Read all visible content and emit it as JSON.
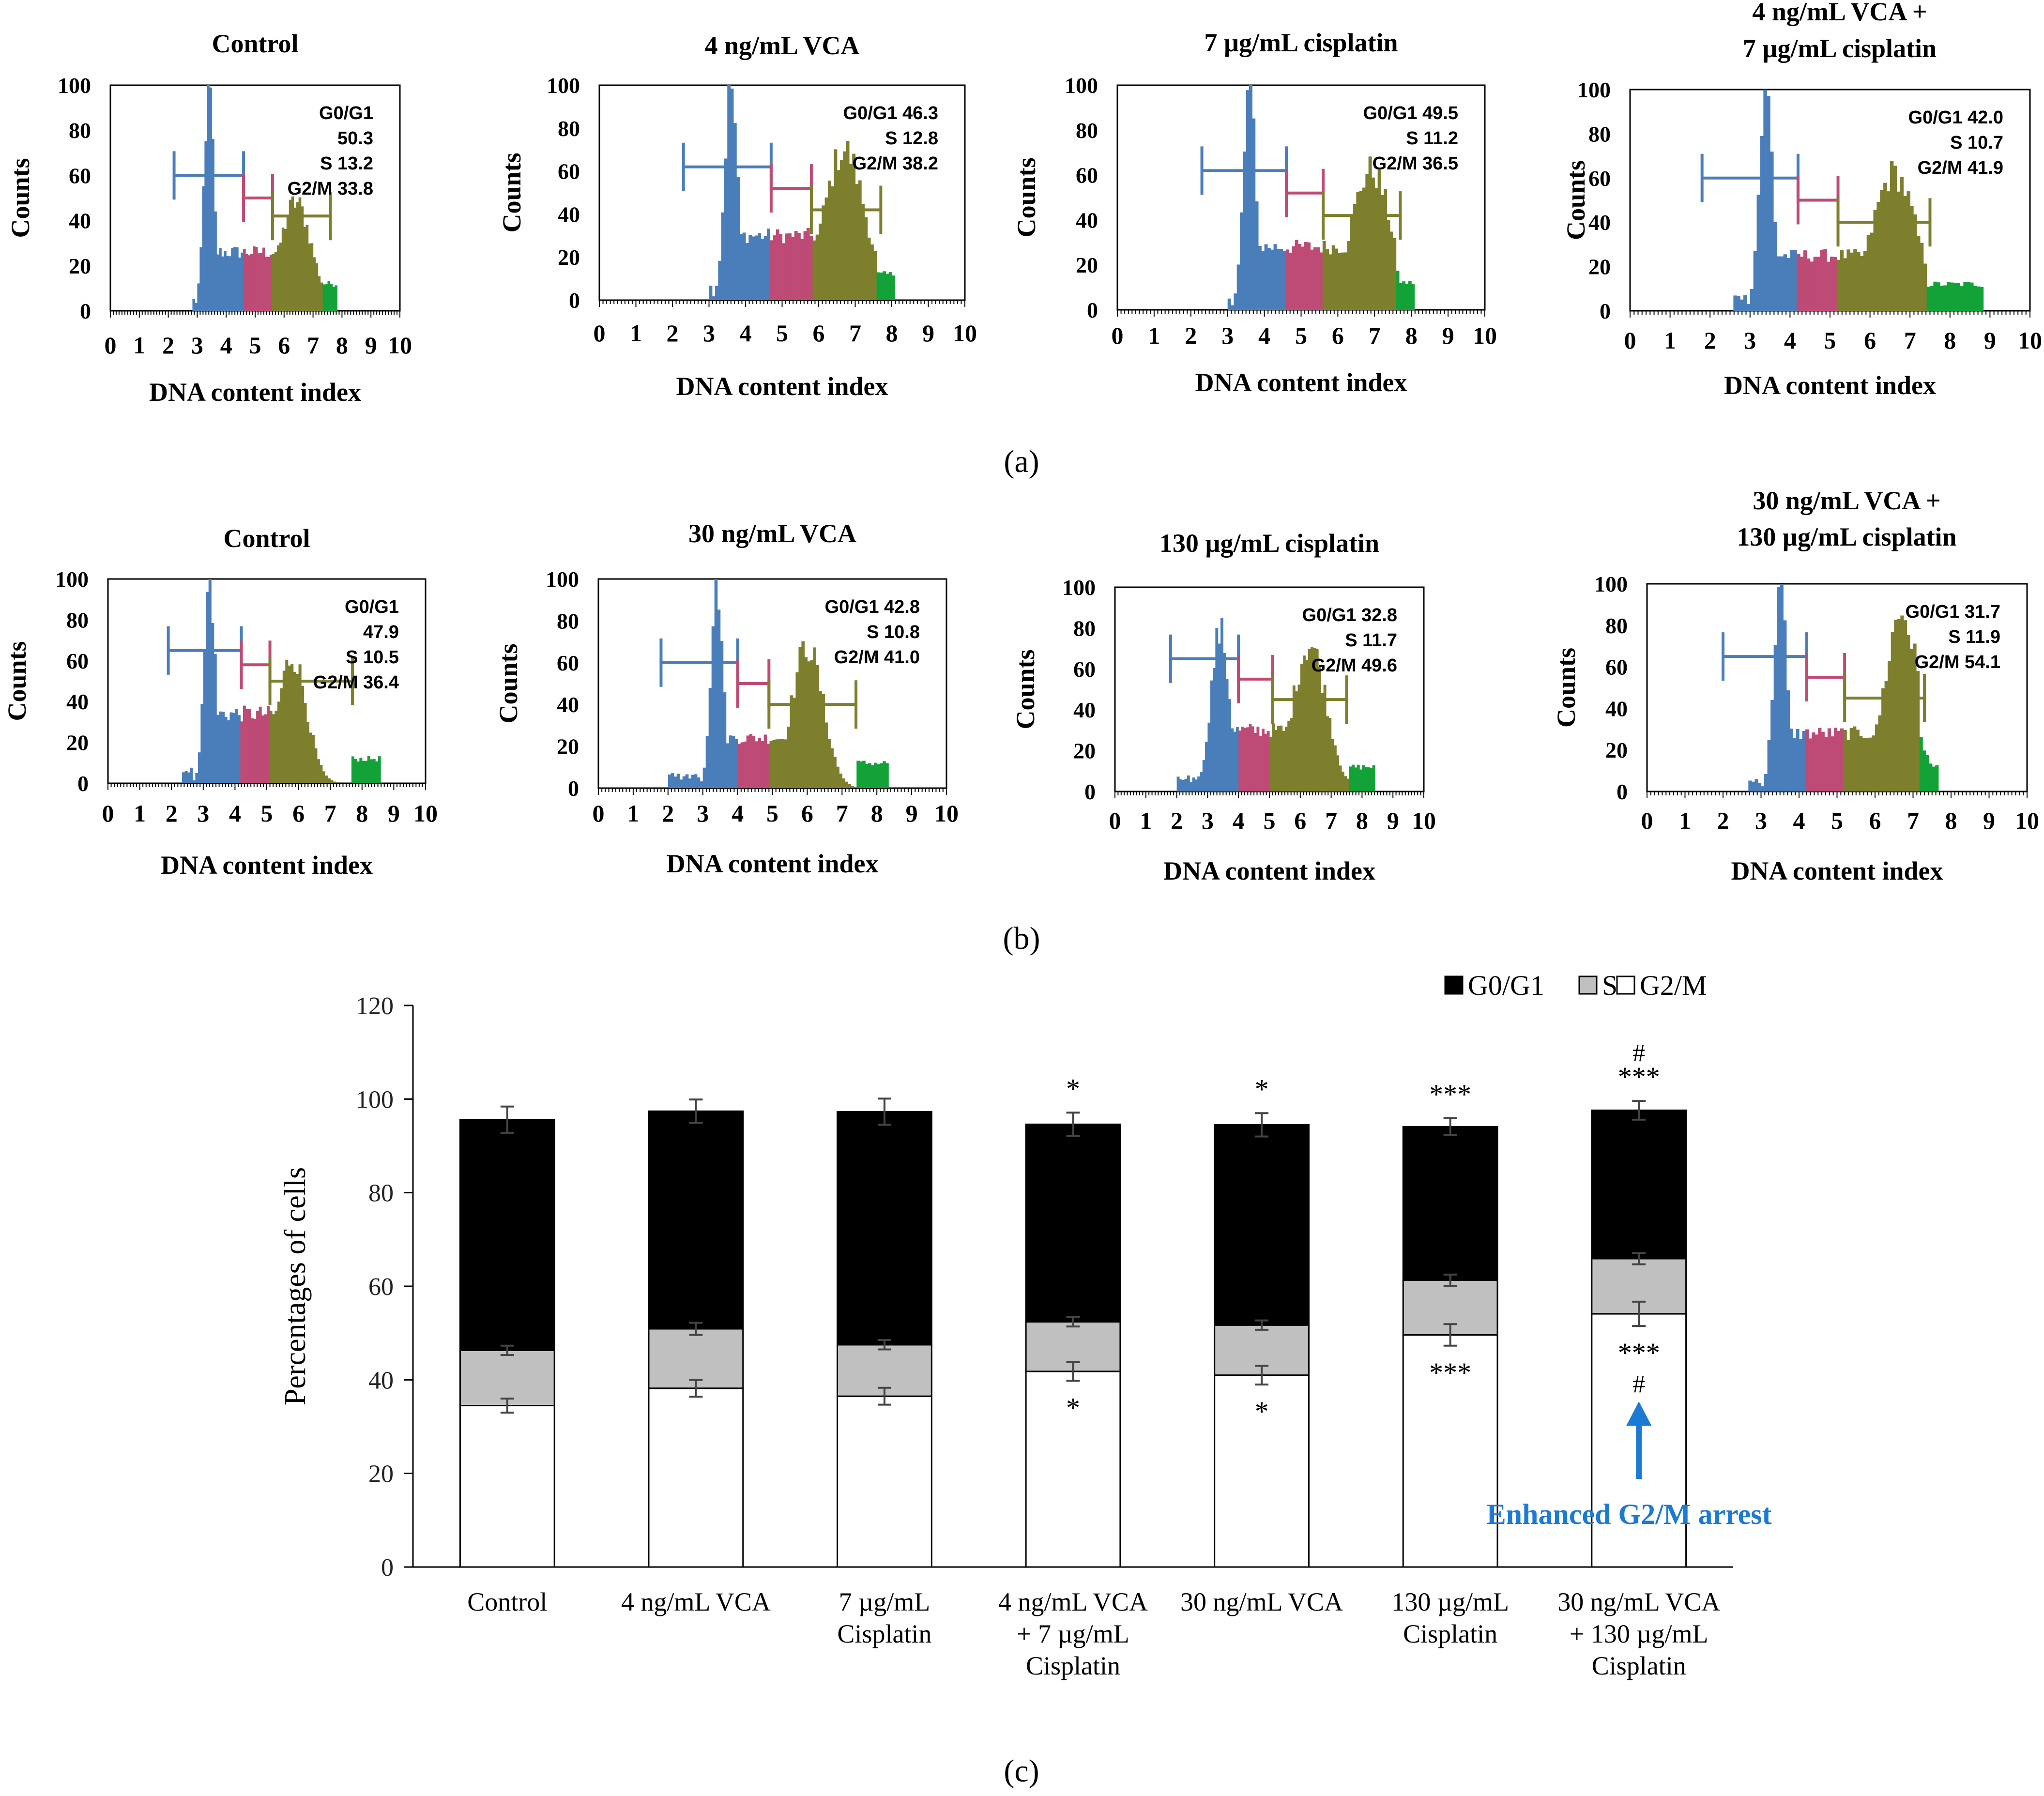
{
  "panel_labels": [
    "(a)",
    "(b)",
    "(c)"
  ],
  "colors": {
    "g0g1_hist": "#4a7ebb",
    "s_hist": "#be4b75",
    "g2m_hist": "#7d7f2c",
    "tail_hist": "#13a237",
    "bar_g0g1": "#000000",
    "bar_s": "#c0c0c0",
    "bar_g2m": "#ffffff",
    "annotation_blue": "#1b7ad3"
  },
  "chart_data": [
    {
      "type": "histogram",
      "panel": "a",
      "title": "Control",
      "xlabel": "DNA content index",
      "ylabel": "Counts",
      "xlim": [
        0,
        10
      ],
      "ylim": [
        0,
        100
      ],
      "xticks": [
        "0",
        "1",
        "2",
        "3",
        "4",
        "5",
        "6",
        "7",
        "8",
        "9",
        "10"
      ],
      "yticks": [
        "0",
        "20",
        "40",
        "60",
        "80",
        "100"
      ],
      "stats_text": [
        "G0/G1",
        "50.3",
        "S 13.2",
        "G2/M 33.8"
      ],
      "gates": {
        "g0g1": [
          2.2,
          4.6,
          60
        ],
        "s": [
          4.6,
          5.6,
          50
        ],
        "g2m": [
          5.6,
          7.6,
          42
        ]
      },
      "regions": {
        "g0g1": [
          2.8,
          4.6
        ],
        "s": [
          4.6,
          5.6
        ],
        "g2m": [
          5.6,
          7.3
        ],
        "tail": [
          7.3,
          7.8
        ]
      },
      "peaks": [
        {
          "center": 3.4,
          "height": 100,
          "width": 0.17
        },
        {
          "center": 6.4,
          "height": 48,
          "width": 0.55
        }
      ],
      "plateau": 26
    },
    {
      "type": "histogram",
      "panel": "a",
      "title": "4 ng/mL VCA",
      "xlabel": "DNA content index",
      "ylabel": "Counts",
      "xlim": [
        0,
        10
      ],
      "ylim": [
        0,
        100
      ],
      "xticks": [
        "0",
        "1",
        "2",
        "3",
        "4",
        "5",
        "6",
        "7",
        "8",
        "9",
        "10"
      ],
      "yticks": [
        "0",
        "20",
        "40",
        "60",
        "80",
        "100"
      ],
      "stats_text": [
        "G0/G1 46.3",
        "S 12.8",
        "G2/M 38.2"
      ],
      "gates": {
        "g0g1": [
          2.3,
          4.7,
          62
        ],
        "s": [
          4.7,
          5.8,
          52
        ],
        "g2m": [
          5.8,
          7.7,
          42
        ]
      },
      "regions": {
        "g0g1": [
          3.0,
          4.7
        ],
        "s": [
          4.7,
          5.8
        ],
        "g2m": [
          5.8,
          7.6
        ],
        "tail": [
          7.6,
          8.1
        ]
      },
      "peaks": [
        {
          "center": 3.6,
          "height": 100,
          "width": 0.17
        },
        {
          "center": 6.7,
          "height": 70,
          "width": 0.55
        }
      ],
      "plateau": 30
    },
    {
      "type": "histogram",
      "panel": "a",
      "title": "7 µg/mL cisplatin",
      "xlabel": "DNA content index",
      "ylabel": "Counts",
      "xlim": [
        0,
        10
      ],
      "ylim": [
        0,
        100
      ],
      "xticks": [
        "0",
        "1",
        "2",
        "3",
        "4",
        "5",
        "6",
        "7",
        "8",
        "9",
        "10"
      ],
      "yticks": [
        "0",
        "20",
        "40",
        "60",
        "80",
        "100"
      ],
      "stats_text": [
        "G0/G1 49.5",
        "S 11.2",
        "G2/M 36.5"
      ],
      "gates": {
        "g0g1": [
          2.3,
          4.6,
          62
        ],
        "s": [
          4.6,
          5.6,
          52
        ],
        "g2m": [
          5.6,
          7.7,
          42
        ]
      },
      "regions": {
        "g0g1": [
          3.0,
          4.6
        ],
        "s": [
          4.6,
          5.6
        ],
        "g2m": [
          5.6,
          7.6
        ],
        "tail": [
          7.6,
          8.1
        ]
      },
      "peaks": [
        {
          "center": 3.6,
          "height": 100,
          "width": 0.17
        },
        {
          "center": 6.9,
          "height": 62,
          "width": 0.55
        }
      ],
      "plateau": 28
    },
    {
      "type": "histogram",
      "panel": "a",
      "title": "4 ng/mL VCA + 7 µg/mL cisplatin",
      "title_lines": [
        "4 ng/mL VCA +",
        "7 µg/mL cisplatin"
      ],
      "xlabel": "DNA content index",
      "ylabel": "Counts",
      "xlim": [
        0,
        10
      ],
      "ylim": [
        0,
        100
      ],
      "xticks": [
        "0",
        "1",
        "2",
        "3",
        "4",
        "5",
        "6",
        "7",
        "8",
        "9",
        "10"
      ],
      "yticks": [
        "0",
        "20",
        "40",
        "60",
        "80",
        "100"
      ],
      "stats_text": [
        "G0/G1 42.0",
        "S 10.7",
        "G2/M 41.9"
      ],
      "gates": {
        "g0g1": [
          1.8,
          4.2,
          60
        ],
        "s": [
          4.2,
          5.2,
          50
        ],
        "g2m": [
          5.2,
          7.5,
          40
        ]
      },
      "regions": {
        "g0g1": [
          2.6,
          4.2
        ],
        "s": [
          4.2,
          5.2
        ],
        "g2m": [
          5.2,
          7.4
        ],
        "tail": [
          7.4,
          8.8
        ]
      },
      "peaks": [
        {
          "center": 3.4,
          "height": 100,
          "width": 0.17
        },
        {
          "center": 6.6,
          "height": 62,
          "width": 0.55
        }
      ],
      "plateau": 25
    },
    {
      "type": "histogram",
      "panel": "b",
      "title": "Control",
      "xlabel": "DNA content index",
      "ylabel": "Counts",
      "xlim": [
        0,
        10
      ],
      "ylim": [
        0,
        100
      ],
      "xticks": [
        "0",
        "1",
        "2",
        "3",
        "4",
        "5",
        "6",
        "7",
        "8",
        "9",
        "10"
      ],
      "yticks": [
        "0",
        "20",
        "40",
        "60",
        "80",
        "100"
      ],
      "stats_text": [
        "G0/G1",
        "47.9",
        "S 10.5",
        "G2/M 36.4"
      ],
      "gates": {
        "g0g1": [
          1.9,
          4.2,
          65
        ],
        "s": [
          4.2,
          5.1,
          58
        ],
        "g2m": [
          5.1,
          7.7,
          50
        ]
      },
      "regions": {
        "g0g1": [
          2.3,
          4.2
        ],
        "s": [
          4.2,
          5.1
        ],
        "g2m": [
          5.1,
          7.7
        ],
        "tail": [
          7.7,
          8.6
        ]
      },
      "peaks": [
        {
          "center": 3.2,
          "height": 100,
          "width": 0.17
        },
        {
          "center": 5.8,
          "height": 62,
          "width": 0.45
        }
      ],
      "plateau": 34
    },
    {
      "type": "histogram",
      "panel": "b",
      "title": "30 ng/mL VCA",
      "xlabel": "DNA content index",
      "ylabel": "Counts",
      "xlim": [
        0,
        10
      ],
      "ylim": [
        0,
        100
      ],
      "xticks": [
        "0",
        "1",
        "2",
        "3",
        "4",
        "5",
        "6",
        "7",
        "8",
        "9",
        "10"
      ],
      "yticks": [
        "0",
        "20",
        "40",
        "60",
        "80",
        "100"
      ],
      "stats_text": [
        "G0/G1 42.8",
        "S 10.8",
        "G2/M 41.0"
      ],
      "gates": {
        "g0g1": [
          1.8,
          4.0,
          60
        ],
        "s": [
          4.0,
          4.9,
          50
        ],
        "g2m": [
          4.9,
          7.4,
          40
        ]
      },
      "regions": {
        "g0g1": [
          2.0,
          4.0
        ],
        "s": [
          4.0,
          4.9
        ],
        "g2m": [
          4.9,
          7.4
        ],
        "tail": [
          7.4,
          8.3
        ]
      },
      "peaks": [
        {
          "center": 3.4,
          "height": 100,
          "width": 0.17
        },
        {
          "center": 6.0,
          "height": 68,
          "width": 0.45
        }
      ],
      "plateau": 24
    },
    {
      "type": "histogram",
      "panel": "b",
      "title": "130 µg/mL cisplatin",
      "xlabel": "DNA content index",
      "ylabel": "Counts",
      "xlim": [
        0,
        10
      ],
      "ylim": [
        0,
        100
      ],
      "xticks": [
        "0",
        "1",
        "2",
        "3",
        "4",
        "5",
        "6",
        "7",
        "8",
        "9",
        "10"
      ],
      "yticks": [
        "0",
        "20",
        "40",
        "60",
        "80",
        "100"
      ],
      "stats_text": [
        "G0/G1 32.8",
        "S 11.7",
        "G2/M 49.6"
      ],
      "gates": {
        "g0g1": [
          1.8,
          4.0,
          65
        ],
        "s": [
          4.0,
          5.1,
          55
        ],
        "g2m": [
          5.1,
          7.5,
          45
        ]
      },
      "regions": {
        "g0g1": [
          2.0,
          4.0
        ],
        "s": [
          4.0,
          5.0
        ],
        "g2m": [
          5.0,
          7.6
        ],
        "tail": [
          7.6,
          8.4
        ]
      },
      "peaks": [
        {
          "center": 3.4,
          "height": 78,
          "width": 0.3
        },
        {
          "center": 6.3,
          "height": 72,
          "width": 0.55
        }
      ],
      "plateau": 30
    },
    {
      "type": "histogram",
      "panel": "b",
      "title": "30 ng/mL VCA + 130 µg/mL cisplatin",
      "title_lines": [
        "30 ng/mL VCA +",
        "130 µg/mL cisplatin"
      ],
      "xlabel": "DNA content index",
      "ylabel": "Counts",
      "xlim": [
        0,
        10
      ],
      "ylim": [
        0,
        100
      ],
      "xticks": [
        "0",
        "1",
        "2",
        "3",
        "4",
        "5",
        "6",
        "7",
        "8",
        "9",
        "10"
      ],
      "yticks": [
        "0",
        "20",
        "40",
        "60",
        "80",
        "100"
      ],
      "stats_text": [
        "G0/G1 31.7",
        "S 11.9",
        "G2/M 54.1"
      ],
      "gates": {
        "g0g1": [
          2.0,
          4.2,
          65
        ],
        "s": [
          4.2,
          5.2,
          55
        ],
        "g2m": [
          5.2,
          7.3,
          45
        ]
      },
      "regions": {
        "g0g1": [
          2.7,
          4.2
        ],
        "s": [
          4.2,
          5.2
        ],
        "g2m": [
          5.2,
          7.2
        ],
        "tail": [
          7.2,
          7.7
        ]
      },
      "peaks": [
        {
          "center": 3.5,
          "height": 100,
          "width": 0.17
        },
        {
          "center": 6.7,
          "height": 86,
          "width": 0.45
        }
      ],
      "plateau": 28
    },
    {
      "type": "bar",
      "stacked": true,
      "panel": "c",
      "ylabel": "Percentages of cells",
      "ylim": [
        0,
        120
      ],
      "yticks": [
        "0",
        "20",
        "40",
        "60",
        "80",
        "100",
        "120"
      ],
      "legend": [
        "G0/G1",
        "S",
        "G2/M"
      ],
      "legend_position": "top-right",
      "categories": [
        [
          "Control"
        ],
        [
          "4 ng/mL  VCA"
        ],
        [
          "7 µg/mL",
          "Cisplatin"
        ],
        [
          "4 ng/mL  VCA",
          "+ 7 µg/mL",
          "Cisplatin"
        ],
        [
          "30 ng/mL  VCA"
        ],
        [
          "130 µg/mL",
          "Cisplatin"
        ],
        [
          "30 ng/mL  VCA",
          "+ 130 µg/mL",
          "Cisplatin"
        ]
      ],
      "series": [
        {
          "name": "G2/M",
          "values": [
            34.5,
            38.2,
            36.5,
            41.8,
            41.0,
            49.6,
            54.1
          ],
          "errors": [
            1.5,
            1.8,
            1.8,
            2.0,
            2.0,
            2.3,
            2.6
          ]
        },
        {
          "name": "S",
          "values": [
            11.8,
            12.7,
            11.0,
            10.6,
            10.7,
            11.7,
            11.8
          ],
          "errors": [
            1.0,
            1.3,
            1.0,
            1.0,
            1.0,
            1.2,
            1.2
          ]
        },
        {
          "name": "G0/G1",
          "values": [
            49.3,
            46.5,
            49.8,
            42.2,
            42.8,
            32.8,
            31.7
          ],
          "errors": [
            2.8,
            2.5,
            2.8,
            2.5,
            2.5,
            1.8,
            2.0
          ]
        }
      ],
      "significance_top": [
        "",
        "",
        "",
        "*",
        "*",
        "***",
        "***"
      ],
      "significance_top_hash": [
        "",
        "",
        "",
        "",
        "",
        "",
        "#"
      ],
      "significance_bottom": [
        "",
        "",
        "",
        "*",
        "*",
        "***",
        "***"
      ],
      "significance_bottom_hash": [
        "",
        "",
        "",
        "",
        "",
        "",
        "#"
      ],
      "annotation": {
        "text": "Enhanced G2/M arrest",
        "category_index": 6
      }
    }
  ]
}
